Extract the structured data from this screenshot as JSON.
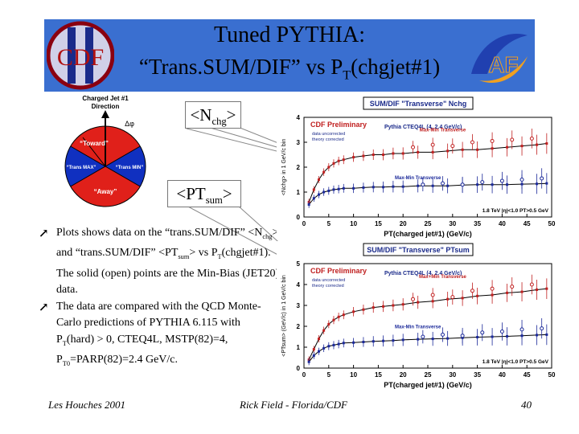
{
  "header": {
    "title": "Tuned PYTHIA:",
    "subtitle_main": "“Trans.SUM/DIF” vs P",
    "subtitle_sub": "T",
    "subtitle_end": "(chgjet#1)"
  },
  "logos": {
    "left": "CDF",
    "right": "AF"
  },
  "diagram": {
    "title": "Charged Jet #1\nDirection",
    "delta_phi": "Δφ",
    "regions": [
      "“Toward”",
      "“Trans MAX”",
      "“Trans MIN”",
      "“Away”"
    ],
    "colors": {
      "toward": "#e0201a",
      "away": "#e0201a",
      "trans": "#1030c0"
    }
  },
  "callouts": {
    "nchg_open": "<N",
    "nchg_sub": "chg",
    "nchg_close": ">",
    "ptsum_open": "<PT",
    "ptsum_sub": "sum",
    "ptsum_close": ">"
  },
  "bullets": {
    "b1": {
      "p1": "Plots shows data on the “trans.SUM/DIF” <N",
      "s1": "chg",
      "p2": "> and “trans.SUM/DIF” <PT",
      "s2": "sum",
      "p3": "> vs P",
      "s3": "T",
      "p4": "(chgjet#1). The solid (open) points are the Min-Bias (JET20) data."
    },
    "b2": {
      "p1": "The data are compared with the QCD Monte-Carlo predictions of PYTHIA 6.115 with P",
      "s1": "T",
      "p2": "(hard) > 0, CTEQ4L, MSTP(82)=4, P",
      "s2": "T0",
      "p3": "=PARP(82)=2.4 GeV/c."
    }
  },
  "chart_data": [
    {
      "type": "scatter",
      "title": "SUM/DIF \"Transverse\" Nchg",
      "legend_title": "CDF Preliminary",
      "legend_note": "data uncorrected\ntheory corrected",
      "model_label": "Pythia CTEQ4L (4, 2.4 GeV/c)",
      "energy_label": "1.8 TeV |η|<1.0 PT>0.5 GeV",
      "xlabel": "PT(charged jet#1) (GeV/c)",
      "ylabel": "<Nchg> in 1 GeV/c bin",
      "xlim": [
        0,
        50
      ],
      "ylim": [
        0,
        4
      ],
      "xticks": [
        0,
        5,
        10,
        15,
        20,
        25,
        30,
        35,
        40,
        45,
        50
      ],
      "yticks": [
        0,
        1,
        2,
        3,
        4
      ],
      "series": [
        {
          "name": "Max-Min Transverse",
          "color": "#c02020",
          "x": [
            1,
            2,
            3,
            4,
            5,
            6,
            7,
            8,
            10,
            12,
            14,
            16,
            18,
            20,
            23,
            26,
            29,
            32,
            35,
            38,
            41,
            44,
            47,
            49
          ],
          "y": [
            0.6,
            1.1,
            1.5,
            1.8,
            2.0,
            2.15,
            2.25,
            2.3,
            2.4,
            2.45,
            2.5,
            2.5,
            2.55,
            2.55,
            2.6,
            2.6,
            2.65,
            2.7,
            2.7,
            2.75,
            2.8,
            2.85,
            2.9,
            2.95
          ]
        },
        {
          "name": "Max-Min Transverse (open)",
          "color": "#c02020",
          "x": [
            22,
            26,
            30,
            34,
            38,
            42,
            46
          ],
          "y": [
            2.8,
            2.9,
            2.85,
            3.0,
            3.05,
            3.1,
            3.15
          ]
        },
        {
          "name": "Max-Min Transverse",
          "color": "#1c2a9a",
          "x": [
            1,
            2,
            3,
            4,
            5,
            6,
            7,
            8,
            10,
            12,
            14,
            16,
            18,
            20,
            23,
            26,
            29,
            32,
            35,
            38,
            41,
            44,
            47,
            49
          ],
          "y": [
            0.5,
            0.75,
            0.9,
            1.0,
            1.05,
            1.1,
            1.12,
            1.15,
            1.15,
            1.18,
            1.2,
            1.2,
            1.22,
            1.22,
            1.25,
            1.25,
            1.25,
            1.28,
            1.3,
            1.3,
            1.3,
            1.32,
            1.33,
            1.35
          ]
        },
        {
          "name": "Max-Min Transverse (open)",
          "color": "#1c2a9a",
          "x": [
            24,
            28,
            32,
            36,
            40,
            44,
            48
          ],
          "y": [
            1.3,
            1.35,
            1.3,
            1.4,
            1.45,
            1.5,
            1.55
          ]
        }
      ]
    },
    {
      "type": "scatter",
      "title": "SUM/DIF \"Transverse\" PTsum",
      "legend_title": "CDF Preliminary",
      "legend_note": "data uncorrected\ntheory corrected",
      "model_label": "Pythia CTEQ4L (4, 2.4 GeV/c)",
      "energy_label": "1.8 TeV |η|<1.0 PT>0.5 GeV",
      "xlabel": "PT(charged jet#1) (GeV/c)",
      "ylabel": "<PTsum> (GeV/c) in 1 GeV/c bin",
      "xlim": [
        0,
        50
      ],
      "ylim": [
        0,
        5
      ],
      "xticks": [
        0,
        5,
        10,
        15,
        20,
        25,
        30,
        35,
        40,
        45,
        50
      ],
      "yticks": [
        0,
        1,
        2,
        3,
        4,
        5
      ],
      "series": [
        {
          "name": "Max+Min Transverse",
          "color": "#c02020",
          "x": [
            1,
            2,
            3,
            4,
            5,
            6,
            7,
            8,
            10,
            12,
            14,
            16,
            18,
            20,
            23,
            26,
            29,
            32,
            35,
            38,
            41,
            44,
            47,
            49
          ],
          "y": [
            0.4,
            0.9,
            1.4,
            1.8,
            2.1,
            2.3,
            2.45,
            2.55,
            2.7,
            2.8,
            2.9,
            2.95,
            3.0,
            3.05,
            3.15,
            3.2,
            3.3,
            3.35,
            3.45,
            3.5,
            3.6,
            3.65,
            3.75,
            3.8
          ]
        },
        {
          "name": "Max+Min Transverse (open)",
          "color": "#c02020",
          "x": [
            22,
            26,
            30,
            34,
            38,
            42,
            46
          ],
          "y": [
            3.3,
            3.5,
            3.4,
            3.7,
            3.8,
            3.9,
            4.0
          ]
        },
        {
          "name": "Max-Min Transverse",
          "color": "#1c2a9a",
          "x": [
            1,
            2,
            3,
            4,
            5,
            6,
            7,
            8,
            10,
            12,
            14,
            16,
            18,
            20,
            23,
            26,
            29,
            32,
            35,
            38,
            41,
            44,
            47,
            49
          ],
          "y": [
            0.3,
            0.6,
            0.8,
            0.95,
            1.05,
            1.1,
            1.15,
            1.2,
            1.22,
            1.25,
            1.28,
            1.3,
            1.32,
            1.35,
            1.38,
            1.4,
            1.42,
            1.45,
            1.48,
            1.5,
            1.52,
            1.55,
            1.58,
            1.6
          ]
        },
        {
          "name": "Max-Min Transverse (open)",
          "color": "#1c2a9a",
          "x": [
            24,
            28,
            32,
            36,
            40,
            44,
            48
          ],
          "y": [
            1.5,
            1.6,
            1.55,
            1.7,
            1.75,
            1.85,
            1.9
          ]
        }
      ]
    }
  ],
  "footer": {
    "left": "Les Houches 2001",
    "center": "Rick Field - Florida/CDF",
    "right": "40"
  }
}
